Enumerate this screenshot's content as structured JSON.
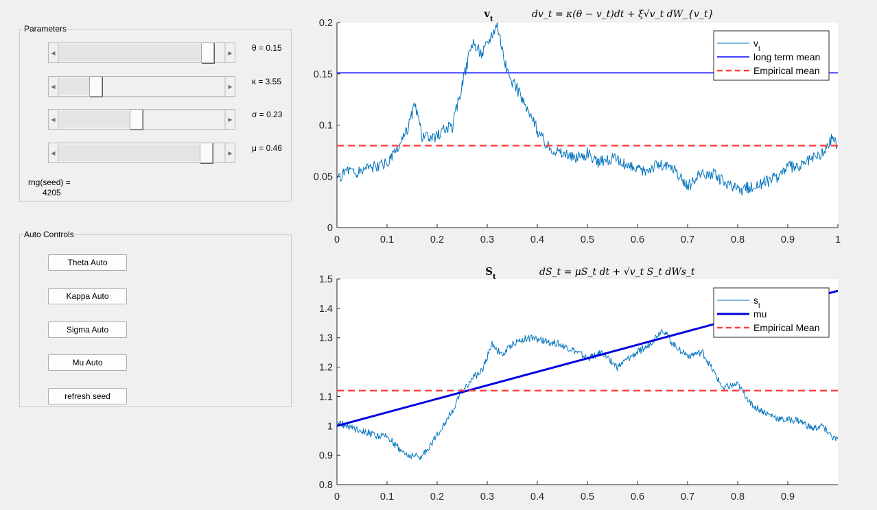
{
  "parameters_panel": {
    "title": "Parameters",
    "sliders": [
      {
        "id": "theta",
        "label": "θ = 0.15",
        "fraction": 0.92
      },
      {
        "id": "kappa",
        "label": "κ = 3.55",
        "fraction": 0.2
      },
      {
        "id": "sigma",
        "label": "σ = 0.23",
        "fraction": 0.46
      },
      {
        "id": "mu",
        "label": "μ = 0.46",
        "fraction": 0.91
      }
    ],
    "seed_label": "rng(seed) =",
    "seed_value": "4205"
  },
  "auto_panel": {
    "title": "Auto Controls",
    "buttons": [
      "Theta Auto",
      "Kappa Auto",
      "Sigma Auto",
      "Mu Auto",
      "refresh seed"
    ]
  },
  "colors": {
    "series": "#0072bd",
    "mean_line_top": "#4040ff",
    "mean_line_bottom": "#0000e0",
    "empirical": "#ff4040"
  },
  "chart_data": [
    {
      "type": "line",
      "title": "v_t",
      "equation": "dv_t = κ(θ − v_t)dt + ξ√v_t dW_{v_t}",
      "xlim": [
        0,
        1
      ],
      "ylim": [
        0,
        0.2
      ],
      "xticks": [
        "0",
        "0.1",
        "0.2",
        "0.3",
        "0.4",
        "0.5",
        "0.6",
        "0.7",
        "0.8",
        "0.9",
        "1"
      ],
      "yticks": [
        "0",
        "0.05",
        "0.1",
        "0.15",
        "0.2"
      ],
      "legend_position": "top-right",
      "series": [
        {
          "name": "v_t",
          "style": "thin",
          "x": [
            0,
            0.02,
            0.04,
            0.06,
            0.08,
            0.1,
            0.12,
            0.14,
            0.155,
            0.17,
            0.19,
            0.21,
            0.23,
            0.25,
            0.27,
            0.29,
            0.31,
            0.32,
            0.34,
            0.36,
            0.38,
            0.4,
            0.42,
            0.44,
            0.46,
            0.48,
            0.5,
            0.52,
            0.55,
            0.58,
            0.61,
            0.64,
            0.67,
            0.7,
            0.72,
            0.75,
            0.78,
            0.8,
            0.83,
            0.86,
            0.88,
            0.9,
            0.92,
            0.94,
            0.96,
            0.975,
            0.99,
            1.0
          ],
          "y": [
            0.045,
            0.058,
            0.052,
            0.06,
            0.058,
            0.063,
            0.075,
            0.095,
            0.12,
            0.09,
            0.085,
            0.095,
            0.098,
            0.14,
            0.18,
            0.17,
            0.19,
            0.2,
            0.15,
            0.135,
            0.115,
            0.095,
            0.08,
            0.075,
            0.07,
            0.068,
            0.072,
            0.063,
            0.068,
            0.06,
            0.055,
            0.062,
            0.058,
            0.04,
            0.05,
            0.053,
            0.042,
            0.036,
            0.04,
            0.045,
            0.05,
            0.06,
            0.058,
            0.065,
            0.07,
            0.075,
            0.09,
            0.078
          ]
        },
        {
          "name": "long term mean",
          "style": "mean",
          "y_const": 0.151
        },
        {
          "name": "Empirical mean",
          "style": "dashed",
          "y_const": 0.08
        }
      ]
    },
    {
      "type": "line",
      "title": "S_t",
      "equation": "dS_t = μS_t dt + √v_t S_t dWs_t",
      "xlim": [
        0,
        1
      ],
      "ylim": [
        0.8,
        1.5
      ],
      "xticks": [
        "0",
        "0.1",
        "0.2",
        "0.3",
        "0.4",
        "0.5",
        "0.6",
        "0.7",
        "0.8",
        "0.9"
      ],
      "yticks": [
        "0.8",
        "0.9",
        "1",
        "1.1",
        "1.2",
        "1.3",
        "1.4",
        "1.5"
      ],
      "legend_position": "top-right",
      "series": [
        {
          "name": "s_t",
          "style": "thin",
          "x": [
            0,
            0.02,
            0.05,
            0.08,
            0.1,
            0.12,
            0.14,
            0.17,
            0.2,
            0.23,
            0.25,
            0.27,
            0.29,
            0.31,
            0.33,
            0.35,
            0.38,
            0.41,
            0.44,
            0.47,
            0.5,
            0.53,
            0.56,
            0.59,
            0.62,
            0.65,
            0.67,
            0.7,
            0.73,
            0.75,
            0.77,
            0.8,
            0.83,
            0.86,
            0.89,
            0.92,
            0.95,
            0.97,
            0.99,
            1.0
          ],
          "y": [
            1.01,
            1.0,
            0.985,
            0.965,
            0.965,
            0.93,
            0.9,
            0.895,
            0.97,
            1.05,
            1.12,
            1.16,
            1.19,
            1.28,
            1.24,
            1.28,
            1.3,
            1.29,
            1.28,
            1.26,
            1.23,
            1.25,
            1.2,
            1.24,
            1.27,
            1.33,
            1.28,
            1.24,
            1.25,
            1.19,
            1.13,
            1.14,
            1.07,
            1.04,
            1.02,
            1.02,
            0.99,
            1.0,
            0.96,
            0.95
          ]
        },
        {
          "name": "mu",
          "style": "mean",
          "x": [
            0,
            1
          ],
          "y": [
            1.0,
            1.46
          ]
        },
        {
          "name": "Empirical Mean",
          "style": "dashed",
          "y_const": 1.12
        }
      ]
    }
  ]
}
